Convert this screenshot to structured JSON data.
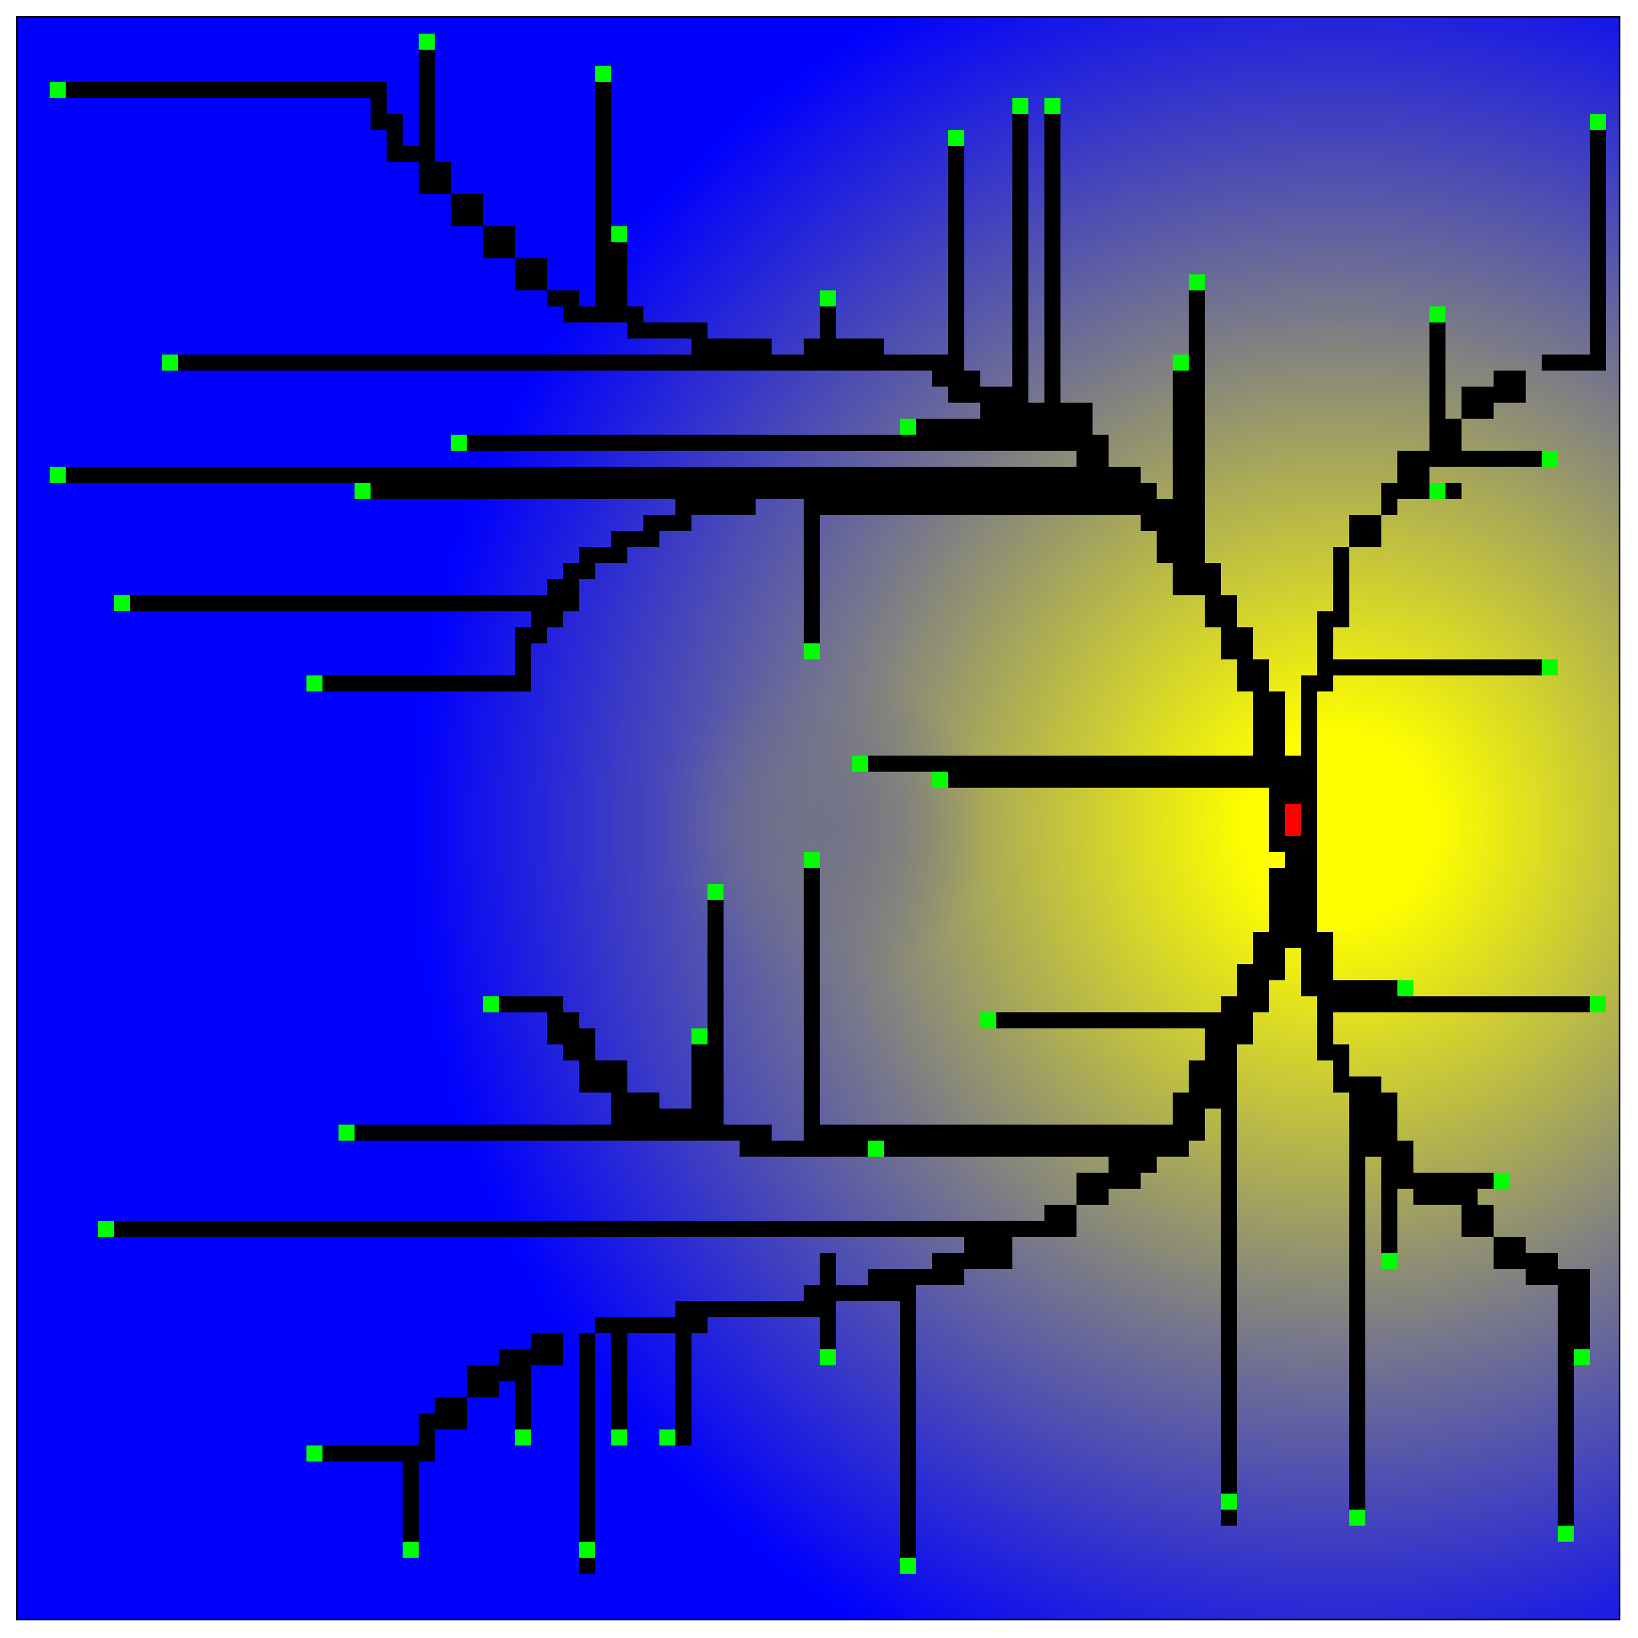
{
  "field": {
    "colors": {
      "far": "#0000ff",
      "mid": "#7a7a8a",
      "near": "#ffff00",
      "center_dim": "#737388"
    },
    "description_levels": {
      "edge": "blue",
      "ring": "gray",
      "focus": "yellow"
    }
  },
  "maze": {
    "grid_size": 100,
    "path_color": "#000000",
    "leaf_color": "#00ff00",
    "root_color": "#ff0000",
    "root": [
      80,
      50
    ],
    "leaf_count": 62
  }
}
